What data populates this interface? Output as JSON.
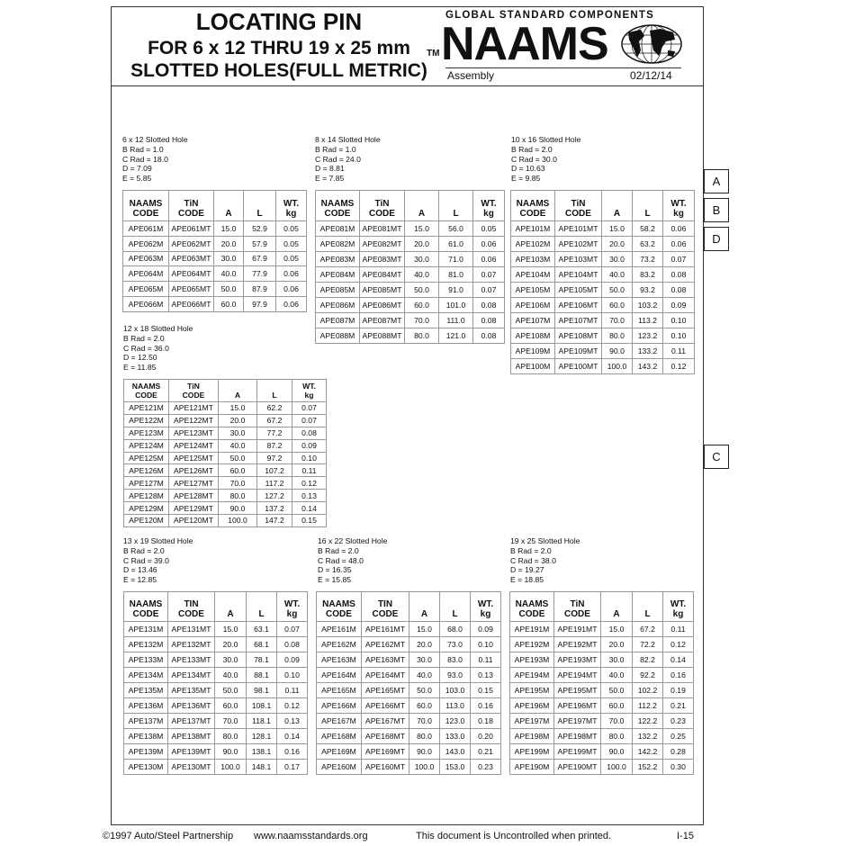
{
  "header": {
    "title_line1": "LOCATING PIN",
    "title_line2": "FOR 6 x 12 THRU 19 x 25 mm",
    "title_line3": "SLOTTED HOLES(FULL METRIC)",
    "tm": "TM",
    "tagline": "GLOBAL STANDARD COMPONENTS",
    "logo_text": "NAAMS",
    "logo_icon": "globe-icon",
    "section": "Assembly",
    "date": "02/12/14"
  },
  "side_tabs": [
    "A",
    "B",
    "D",
    "C"
  ],
  "tables": [
    {
      "spec": [
        "6 x 12 Slotted Hole",
        "B Rad = 1.0",
        "C Rad = 18.0",
        "D = 7.09",
        "E = 5.85"
      ],
      "headers": [
        "NAAMS\nCODE",
        "TiN\nCODE",
        "A",
        "L",
        "WT.\nkg"
      ],
      "rows": [
        [
          "APE061M",
          "APE061MT",
          "15.0",
          "52.9",
          "0.05"
        ],
        [
          "APE062M",
          "APE062MT",
          "20.0",
          "57.9",
          "0.05"
        ],
        [
          "APE063M",
          "APE063MT",
          "30.0",
          "67.9",
          "0.05"
        ],
        [
          "APE064M",
          "APE064MT",
          "40.0",
          "77.9",
          "0.06"
        ],
        [
          "APE065M",
          "APE065MT",
          "50.0",
          "87.9",
          "0.06"
        ],
        [
          "APE066M",
          "APE066MT",
          "60.0",
          "97.9",
          "0.06"
        ]
      ]
    },
    {
      "spec": [
        "8 x 14 Slotted Hole",
        "B Rad = 1.0",
        "C Rad = 24.0",
        "D = 8.81",
        "E = 7.85"
      ],
      "headers": [
        "NAAMS\nCODE",
        "TiN\nCODE",
        "A",
        "L",
        "WT.\nkg"
      ],
      "rows": [
        [
          "APE081M",
          "APE081MT",
          "15.0",
          "56.0",
          "0.05"
        ],
        [
          "APE082M",
          "APE082MT",
          "20.0",
          "61.0",
          "0.06"
        ],
        [
          "APE083M",
          "APE083MT",
          "30.0",
          "71.0",
          "0.06"
        ],
        [
          "APE084M",
          "APE084MT",
          "40.0",
          "81.0",
          "0.07"
        ],
        [
          "APE085M",
          "APE085MT",
          "50.0",
          "91.0",
          "0.07"
        ],
        [
          "APE086M",
          "APE086MT",
          "60.0",
          "101.0",
          "0.08"
        ],
        [
          "APE087M",
          "APE087MT",
          "70.0",
          "111.0",
          "0.08"
        ],
        [
          "APE088M",
          "APE088MT",
          "80.0",
          "121.0",
          "0.08"
        ]
      ]
    },
    {
      "spec": [
        "10 x 16 Slotted Hole",
        "B Rad = 2.0",
        "C Rad = 30.0",
        "D = 10.63",
        "E = 9.85"
      ],
      "headers": [
        "NAAMS\nCODE",
        "TiN\nCODE",
        "A",
        "L",
        "WT.\nkg"
      ],
      "rows": [
        [
          "APE101M",
          "APE101MT",
          "15.0",
          "58.2",
          "0.06"
        ],
        [
          "APE102M",
          "APE102MT",
          "20.0",
          "63.2",
          "0.06"
        ],
        [
          "APE103M",
          "APE103MT",
          "30.0",
          "73.2",
          "0.07"
        ],
        [
          "APE104M",
          "APE104MT",
          "40.0",
          "83.2",
          "0.08"
        ],
        [
          "APE105M",
          "APE105MT",
          "50.0",
          "93.2",
          "0.08"
        ],
        [
          "APE106M",
          "APE106MT",
          "60.0",
          "103.2",
          "0.09"
        ],
        [
          "APE107M",
          "APE107MT",
          "70.0",
          "113.2",
          "0.10"
        ],
        [
          "APE108M",
          "APE108MT",
          "80.0",
          "123.2",
          "0.10"
        ],
        [
          "APE109M",
          "APE109MT",
          "90.0",
          "133.2",
          "0.11"
        ],
        [
          "APE100M",
          "APE100MT",
          "100.0",
          "143.2",
          "0.12"
        ]
      ]
    },
    {
      "spec": [
        "12 x 18 Slotted Hole",
        "B Rad = 2.0",
        "C Rad = 36.0",
        "D = 12.50",
        "E = 11.85"
      ],
      "headers": [
        "NAAMS\nCODE",
        "TiN\nCODE",
        "A",
        "L",
        "WT.\nkg"
      ],
      "rows": [
        [
          "APE121M",
          "APE121MT",
          "15.0",
          "62.2",
          "0.07"
        ],
        [
          "APE122M",
          "APE122MT",
          "20.0",
          "67.2",
          "0.07"
        ],
        [
          "APE123M",
          "APE123MT",
          "30.0",
          "77.2",
          "0.08"
        ],
        [
          "APE124M",
          "APE124MT",
          "40.0",
          "87.2",
          "0.09"
        ],
        [
          "APE125M",
          "APE125MT",
          "50.0",
          "97.2",
          "0.10"
        ],
        [
          "APE126M",
          "APE126MT",
          "60.0",
          "107.2",
          "0.11"
        ],
        [
          "APE127M",
          "APE127MT",
          "70.0",
          "117.2",
          "0.12"
        ],
        [
          "APE128M",
          "APE128MT",
          "80.0",
          "127.2",
          "0.13"
        ],
        [
          "APE129M",
          "APE129MT",
          "90.0",
          "137.2",
          "0.14"
        ],
        [
          "APE120M",
          "APE120MT",
          "100.0",
          "147.2",
          "0.15"
        ]
      ]
    },
    {
      "spec": [
        "13 x 19 Slotted Hole",
        "B Rad = 2.0",
        "C Rad = 39.0",
        "D = 13.46",
        "E = 12.85"
      ],
      "headers": [
        "NAAMS\nCODE",
        "TIN\nCODE",
        "A",
        "L",
        "WT.\nkg"
      ],
      "rows": [
        [
          "APE131M",
          "APE131MT",
          "15.0",
          "63.1",
          "0.07"
        ],
        [
          "APE132M",
          "APE132MT",
          "20.0",
          "68.1",
          "0.08"
        ],
        [
          "APE133M",
          "APE133MT",
          "30.0",
          "78.1",
          "0.09"
        ],
        [
          "APE134M",
          "APE134MT",
          "40.0",
          "88.1",
          "0.10"
        ],
        [
          "APE135M",
          "APE135MT",
          "50.0",
          "98.1",
          "0.11"
        ],
        [
          "APE136M",
          "APE136MT",
          "60.0",
          "108.1",
          "0.12"
        ],
        [
          "APE137M",
          "APE137MT",
          "70.0",
          "118.1",
          "0.13"
        ],
        [
          "APE138M",
          "APE138MT",
          "80.0",
          "128.1",
          "0.14"
        ],
        [
          "APE139M",
          "APE139MT",
          "90.0",
          "138.1",
          "0.16"
        ],
        [
          "APE130M",
          "APE130MT",
          "100.0",
          "148.1",
          "0.17"
        ]
      ]
    },
    {
      "spec": [
        "16 x 22 Slotted Hole",
        "B Rad = 2.0",
        "C Rad = 48.0",
        "D = 16.35",
        "E = 15.85"
      ],
      "headers": [
        "NAAMS\nCODE",
        "TIN\nCODE",
        "A",
        "L",
        "WT.\nkg"
      ],
      "rows": [
        [
          "APE161M",
          "APE161MT",
          "15.0",
          "68.0",
          "0.09"
        ],
        [
          "APE162M",
          "APE162MT",
          "20.0",
          "73.0",
          "0.10"
        ],
        [
          "APE163M",
          "APE163MT",
          "30.0",
          "83.0",
          "0.11"
        ],
        [
          "APE164M",
          "APE164MT",
          "40.0",
          "93.0",
          "0.13"
        ],
        [
          "APE165M",
          "APE165MT",
          "50.0",
          "103.0",
          "0.15"
        ],
        [
          "APE166M",
          "APE166MT",
          "60.0",
          "113.0",
          "0.16"
        ],
        [
          "APE167M",
          "APE167MT",
          "70.0",
          "123.0",
          "0.18"
        ],
        [
          "APE168M",
          "APE168MT",
          "80.0",
          "133.0",
          "0.20"
        ],
        [
          "APE169M",
          "APE169MT",
          "90.0",
          "143.0",
          "0.21"
        ],
        [
          "APE160M",
          "APE160MT",
          "100.0",
          "153.0",
          "0.23"
        ]
      ]
    },
    {
      "spec": [
        "19 x 25 Slotted Hole",
        "B Rad = 2.0",
        "C Rad = 38.0",
        "D = 19.27",
        "E = 18.85"
      ],
      "headers": [
        "NAAMS\nCODE",
        "TiN\nCODE",
        "A",
        "L",
        "WT.\nkg"
      ],
      "rows": [
        [
          "APE191M",
          "APE191MT",
          "15.0",
          "67.2",
          "0.11"
        ],
        [
          "APE192M",
          "APE192MT",
          "20.0",
          "72.2",
          "0.12"
        ],
        [
          "APE193M",
          "APE193MT",
          "30.0",
          "82.2",
          "0.14"
        ],
        [
          "APE194M",
          "APE194MT",
          "40.0",
          "92.2",
          "0.16"
        ],
        [
          "APE195M",
          "APE195MT",
          "50.0",
          "102.2",
          "0.19"
        ],
        [
          "APE196M",
          "APE196MT",
          "60.0",
          "112.2",
          "0.21"
        ],
        [
          "APE197M",
          "APE197MT",
          "70.0",
          "122.2",
          "0.23"
        ],
        [
          "APE198M",
          "APE198MT",
          "80.0",
          "132.2",
          "0.25"
        ],
        [
          "APE199M",
          "APE199MT",
          "90.0",
          "142.2",
          "0.28"
        ],
        [
          "APE190M",
          "APE190MT",
          "100.0",
          "152.2",
          "0.30"
        ]
      ]
    }
  ],
  "footer": {
    "copyright": "©1997 Auto/Steel Partnership",
    "website": "www.naamsstandards.org",
    "notice": "This document is Uncontrolled when printed.",
    "page": "I-15"
  }
}
